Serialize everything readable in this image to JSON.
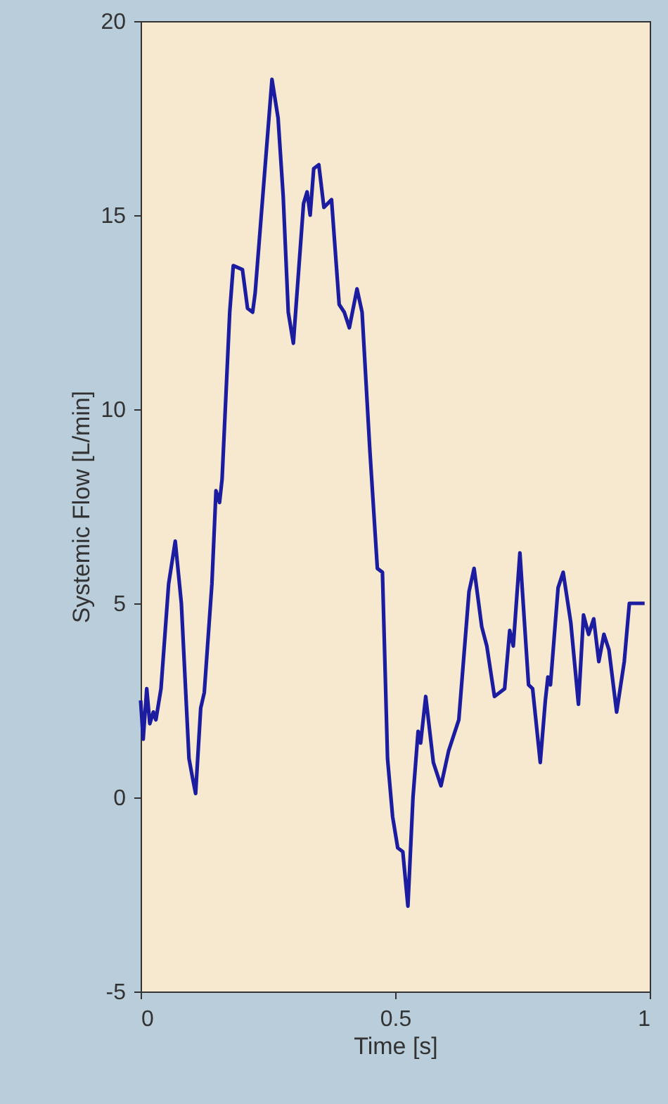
{
  "chart_data": {
    "type": "line",
    "xlabel": "Time [s]",
    "ylabel": "Systemic Flow [L/min]",
    "xlim": [
      0,
      1
    ],
    "xticks": [
      0,
      0.5,
      1
    ],
    "ylim": [
      -5,
      20
    ],
    "yticks": [
      -5,
      0,
      5,
      10,
      15,
      20
    ],
    "grid": false,
    "marker": "none",
    "line_style": "solid",
    "series": [
      {
        "color": "#1c1ca0",
        "x": [
          0,
          0.005,
          0.012,
          0.018,
          0.025,
          0.03,
          0.04,
          0.055,
          0.068,
          0.08,
          0.095,
          0.102,
          0.108,
          0.118,
          0.125,
          0.14,
          0.148,
          0.155,
          0.16,
          0.175,
          0.182,
          0.2,
          0.21,
          0.22,
          0.225,
          0.24,
          0.258,
          0.27,
          0.28,
          0.29,
          0.3,
          0.31,
          0.32,
          0.327,
          0.333,
          0.34,
          0.35,
          0.36,
          0.375,
          0.39,
          0.4,
          0.41,
          0.425,
          0.435,
          0.45,
          0.465,
          0.475,
          0.485,
          0.495,
          0.505,
          0.515,
          0.525,
          0.535,
          0.545,
          0.55,
          0.56,
          0.575,
          0.59,
          0.605,
          0.625,
          0.645,
          0.655,
          0.67,
          0.68,
          0.695,
          0.705,
          0.715,
          0.725,
          0.732,
          0.745,
          0.762,
          0.77,
          0.785,
          0.795,
          0.8,
          0.805,
          0.82,
          0.83,
          0.845,
          0.86,
          0.87,
          0.88,
          0.89,
          0.9,
          0.91,
          0.92,
          0.935,
          0.95,
          0.96,
          0.99
        ],
        "values": [
          2.5,
          1.5,
          2.8,
          1.9,
          2.2,
          2.0,
          2.8,
          5.5,
          6.6,
          5.0,
          1.0,
          0.5,
          0.1,
          2.3,
          2.7,
          5.5,
          7.9,
          7.6,
          8.2,
          12.5,
          13.7,
          13.6,
          12.6,
          12.5,
          13.0,
          15.5,
          18.5,
          17.5,
          15.5,
          12.5,
          11.7,
          13.5,
          15.3,
          15.6,
          15.0,
          16.2,
          16.3,
          15.2,
          15.4,
          12.7,
          12.5,
          12.1,
          13.1,
          12.5,
          9.0,
          5.9,
          5.8,
          1.0,
          -0.5,
          -1.3,
          -1.4,
          -2.8,
          0,
          1.7,
          1.4,
          2.6,
          0.9,
          0.3,
          1.2,
          2.0,
          5.3,
          5.9,
          4.4,
          3.9,
          2.6,
          2.7,
          2.8,
          4.3,
          3.9,
          6.3,
          2.9,
          2.8,
          0.9,
          2.5,
          3.1,
          2.9,
          5.4,
          5.8,
          4.5,
          2.4,
          4.7,
          4.2,
          4.6,
          3.5,
          4.2,
          3.8,
          2.2,
          3.5,
          5.0,
          5.0
        ]
      }
    ]
  }
}
